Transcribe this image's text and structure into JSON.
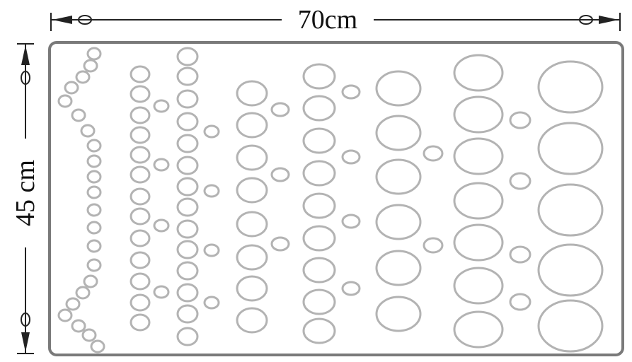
{
  "dimensions": {
    "width_label": "70cm",
    "height_label": "45 cm"
  },
  "colors": {
    "board_stroke": "#7a7a7a",
    "hole_stroke": "#b3b3b3",
    "dimension_line": "#222222",
    "text": "#111111",
    "background": "#ffffff"
  }
}
